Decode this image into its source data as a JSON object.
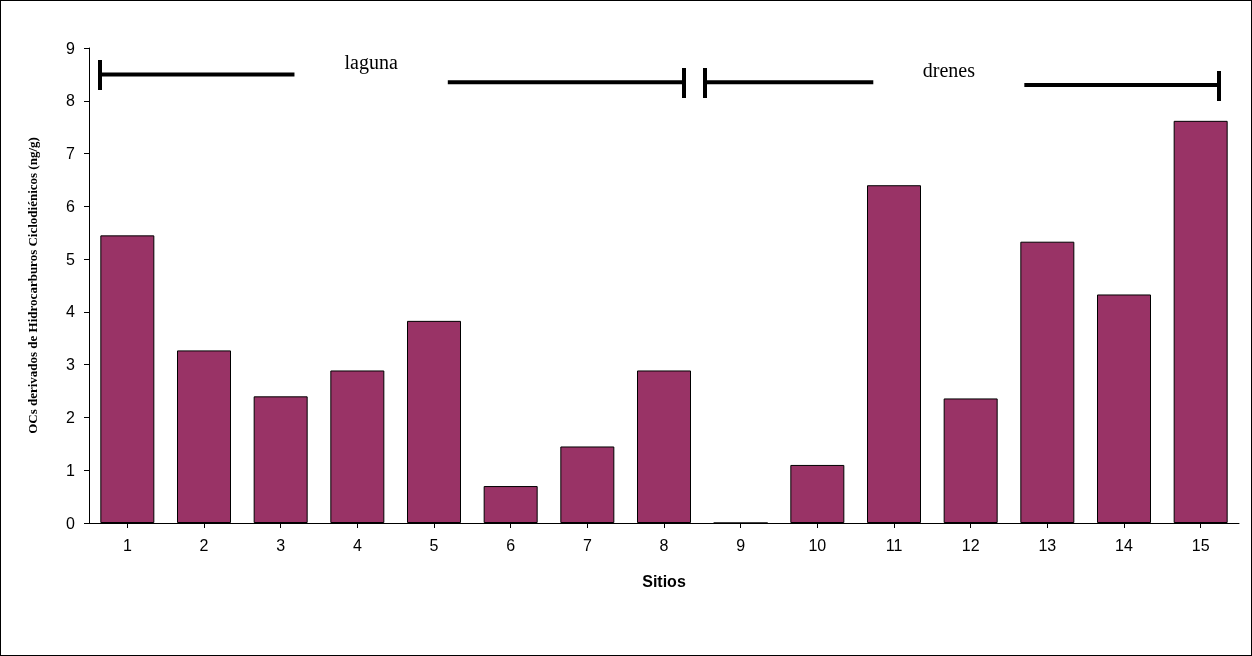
{
  "chart_data": {
    "type": "bar",
    "xlabel": "Sitios",
    "ylabel": "OCs derivados de Hidrocarburos Ciclodiénicos (ng/g)",
    "x": [
      1,
      2,
      3,
      4,
      5,
      6,
      7,
      8,
      9,
      10,
      11,
      12,
      13,
      14,
      15
    ],
    "series": [
      {
        "color": "#993366",
        "values": [
          5.45,
          3.27,
          2.4,
          2.89,
          3.83,
          0.7,
          1.45,
          2.89,
          0,
          1.1,
          6.4,
          2.36,
          5.33,
          4.33,
          7.62
        ]
      },
      {
        "type": "line",
        "color": "#000000",
        "x": [
          0.63,
          3.18,
          4.2,
          5.18,
          8.25
        ],
        "values": [
          8.5,
          8.5,
          null,
          8.35,
          8.35
        ]
      },
      {
        "type": "line",
        "color": "#000000",
        "x": [
          8.52,
          10.73,
          11.7,
          12.7,
          15.22
        ],
        "values": [
          8.35,
          8.35,
          null,
          8.3,
          8.3
        ]
      }
    ],
    "annotations": [
      "laguna",
      "drenes"
    ],
    "xlim": [
      0.5,
      15.5
    ],
    "xticks": [
      1,
      2,
      3,
      4,
      5,
      6,
      7,
      8,
      9,
      10,
      11,
      12,
      13,
      14,
      15
    ],
    "ylim": [
      0,
      9
    ],
    "yticks": [
      0,
      1,
      2,
      3,
      4,
      5,
      6,
      7,
      8,
      9
    ],
    "marker": "none",
    "grid": false
  }
}
